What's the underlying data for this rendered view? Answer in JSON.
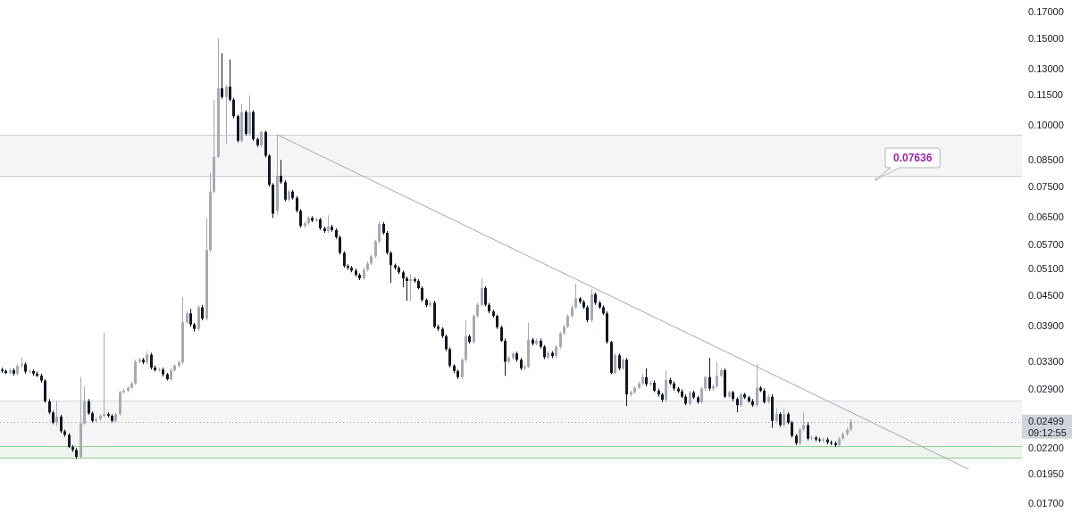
{
  "chart_data": {
    "type": "candlestick",
    "log": true,
    "tick_labels": "y",
    "categories": [
      null,
      null,
      null,
      null,
      null,
      null,
      null,
      null,
      null,
      null,
      null,
      null,
      null,
      null,
      null,
      null,
      null,
      null,
      null,
      null,
      null,
      null,
      null,
      null,
      null,
      null,
      null,
      null,
      null,
      null,
      null,
      null,
      null,
      null,
      null,
      null,
      null,
      null,
      null,
      null,
      null,
      null,
      null,
      null,
      null,
      null,
      null,
      null,
      null,
      null,
      null,
      null,
      null,
      null,
      null,
      null,
      null,
      null,
      null,
      null,
      null,
      null,
      null,
      null,
      null,
      null,
      null,
      null,
      null,
      null,
      null,
      null,
      null,
      null,
      null,
      null,
      null,
      null,
      null,
      null,
      null,
      null,
      null,
      null,
      null,
      null,
      null,
      null,
      null,
      null,
      null,
      null,
      null,
      null,
      null,
      null,
      null,
      null,
      null,
      null,
      null,
      null,
      null,
      null,
      null,
      null,
      null,
      null,
      null,
      null,
      null,
      null,
      null,
      null,
      null,
      null,
      null,
      null,
      null,
      null,
      null,
      null,
      null,
      null,
      null,
      null,
      null,
      null,
      null,
      null,
      null,
      null,
      null,
      null,
      null,
      null,
      null,
      null,
      null,
      null,
      null,
      null,
      null,
      null,
      null,
      null,
      null,
      null,
      null,
      null,
      null,
      null,
      null,
      null,
      null,
      null,
      null,
      null,
      null,
      null,
      null,
      null,
      null,
      null,
      null,
      null,
      null,
      null,
      null,
      null,
      null,
      null,
      null,
      null,
      null,
      null,
      null,
      null,
      null,
      null,
      null,
      null,
      null,
      null,
      null,
      null,
      null,
      null,
      null,
      null,
      null,
      null,
      null,
      null,
      null,
      null,
      null,
      null,
      null,
      null,
      null,
      null,
      null,
      null,
      null,
      null,
      null,
      null,
      null,
      null,
      null,
      null,
      null,
      null,
      null,
      null,
      null,
      null,
      null,
      null,
      null,
      null,
      null,
      null,
      null,
      null,
      null,
      null,
      null,
      null,
      null,
      null,
      null,
      null,
      null,
      null,
      null,
      null,
      null,
      null,
      null,
      null,
      null,
      null,
      null,
      null,
      null,
      null,
      null,
      null,
      null,
      null,
      null,
      null,
      null,
      null,
      null,
      null,
      null,
      null
    ],
    "series": [
      {
        "type": "candlestick",
        "ohlc": [
          [
            0.0319,
            0.0322,
            0.0314,
            0.0317
          ],
          [
            0.0317,
            0.0319,
            0.0312,
            0.0314
          ],
          [
            0.0314,
            0.0321,
            0.0312,
            0.0318
          ],
          [
            0.0318,
            0.0321,
            0.031,
            0.0313
          ],
          [
            0.0313,
            0.0327,
            0.031,
            0.0325
          ],
          [
            0.0325,
            0.0338,
            0.0322,
            0.0327
          ],
          [
            0.0327,
            0.033,
            0.0313,
            0.0316
          ],
          [
            0.0316,
            0.0319,
            0.0313,
            0.0317
          ],
          [
            0.0317,
            0.0319,
            0.031,
            0.0313
          ],
          [
            0.0313,
            0.0316,
            0.0308,
            0.031
          ],
          [
            0.031,
            0.0313,
            0.03,
            0.0303
          ],
          [
            0.0303,
            0.0305,
            0.0273,
            0.0275
          ],
          [
            0.0275,
            0.0278,
            0.0259,
            0.0261
          ],
          [
            0.0261,
            0.0263,
            0.0247,
            0.0249
          ],
          [
            0.0249,
            0.0275,
            0.0245,
            0.0256
          ],
          [
            0.0256,
            0.0258,
            0.0237,
            0.0239
          ],
          [
            0.0239,
            0.0241,
            0.0233,
            0.0235
          ],
          [
            0.0235,
            0.0237,
            0.0221,
            0.0222
          ],
          [
            0.0222,
            0.0224,
            0.0217,
            0.0219
          ],
          [
            0.0219,
            0.0221,
            0.021,
            0.0212
          ],
          [
            0.0212,
            0.0308,
            0.021,
            0.0248
          ],
          [
            0.0248,
            0.0295,
            0.0246,
            0.0275
          ],
          [
            0.0275,
            0.0278,
            0.0258,
            0.026
          ],
          [
            0.026,
            0.0262,
            0.0249,
            0.0251
          ],
          [
            0.0251,
            0.0255,
            0.0249,
            0.0253
          ],
          [
            0.0253,
            0.0259,
            0.0251,
            0.0257
          ],
          [
            0.0257,
            0.0379,
            0.0255,
            0.0259
          ],
          [
            0.0259,
            0.0261,
            0.0255,
            0.0257
          ],
          [
            0.0257,
            0.0259,
            0.0249,
            0.0251
          ],
          [
            0.0251,
            0.0261,
            0.0249,
            0.0259
          ],
          [
            0.0259,
            0.0289,
            0.0257,
            0.0287
          ],
          [
            0.0287,
            0.0292,
            0.0285,
            0.0289
          ],
          [
            0.0289,
            0.0295,
            0.0287,
            0.0293
          ],
          [
            0.0293,
            0.0302,
            0.0291,
            0.0299
          ],
          [
            0.0299,
            0.0334,
            0.0297,
            0.0331
          ],
          [
            0.0331,
            0.0337,
            0.0329,
            0.0334
          ],
          [
            0.0334,
            0.0337,
            0.0327,
            0.033
          ],
          [
            0.033,
            0.0348,
            0.0327,
            0.0342
          ],
          [
            0.0342,
            0.0345,
            0.0319,
            0.0322
          ],
          [
            0.0322,
            0.0325,
            0.0316,
            0.0318
          ],
          [
            0.0318,
            0.0322,
            0.0316,
            0.0319
          ],
          [
            0.0319,
            0.0322,
            0.0309,
            0.0312
          ],
          [
            0.0312,
            0.0314,
            0.0303,
            0.0305
          ],
          [
            0.0305,
            0.0321,
            0.0303,
            0.0318
          ],
          [
            0.0318,
            0.0327,
            0.0316,
            0.0325
          ],
          [
            0.0325,
            0.0333,
            0.0322,
            0.033
          ],
          [
            0.033,
            0.0448,
            0.0327,
            0.0398
          ],
          [
            0.0398,
            0.0419,
            0.0395,
            0.0415
          ],
          [
            0.0415,
            0.0424,
            0.039,
            0.0394
          ],
          [
            0.0394,
            0.0397,
            0.0381,
            0.0386
          ],
          [
            0.0386,
            0.0431,
            0.0382,
            0.0427
          ],
          [
            0.0427,
            0.0432,
            0.0402,
            0.0405
          ],
          [
            0.0405,
            0.0649,
            0.0402,
            0.0558
          ],
          [
            0.0558,
            0.08,
            0.0553,
            0.0734
          ],
          [
            0.0734,
            0.1128,
            0.0728,
            0.0864
          ],
          [
            0.0864,
            0.1503,
            0.0858,
            0.119
          ],
          [
            0.119,
            0.1402,
            0.1133,
            0.1142
          ],
          [
            0.1142,
            0.121,
            0.0919,
            0.1199
          ],
          [
            0.1199,
            0.1362,
            0.1119,
            0.1128
          ],
          [
            0.1128,
            0.1138,
            0.1035,
            0.1044
          ],
          [
            0.1044,
            0.1052,
            0.0923,
            0.0931
          ],
          [
            0.0931,
            0.1105,
            0.0923,
            0.1065
          ],
          [
            0.1065,
            0.1074,
            0.0954,
            0.0962
          ],
          [
            0.0962,
            0.1151,
            0.0954,
            0.1065
          ],
          [
            0.1065,
            0.1074,
            0.0931,
            0.0938
          ],
          [
            0.0938,
            0.0946,
            0.0904,
            0.0912
          ],
          [
            0.0912,
            0.0977,
            0.0904,
            0.097
          ],
          [
            0.097,
            0.0977,
            0.0861,
            0.0868
          ],
          [
            0.0868,
            0.0875,
            0.0752,
            0.0758
          ],
          [
            0.0758,
            0.0764,
            0.0649,
            0.0662
          ],
          [
            0.0671,
            0.0958,
            0.0657,
            0.079
          ],
          [
            0.079,
            0.0851,
            0.0761,
            0.0767
          ],
          [
            0.0767,
            0.0774,
            0.0701,
            0.0707
          ],
          [
            0.0707,
            0.074,
            0.0701,
            0.0734
          ],
          [
            0.0734,
            0.074,
            0.0707,
            0.0713
          ],
          [
            0.0713,
            0.0719,
            0.0665,
            0.0671
          ],
          [
            0.0671,
            0.0676,
            0.062,
            0.0625
          ],
          [
            0.0625,
            0.0638,
            0.062,
            0.0633
          ],
          [
            0.0633,
            0.0654,
            0.0628,
            0.0649
          ],
          [
            0.0649,
            0.0654,
            0.0636,
            0.0641
          ],
          [
            0.0641,
            0.0649,
            0.0636,
            0.0644
          ],
          [
            0.0644,
            0.0649,
            0.0613,
            0.0618
          ],
          [
            0.0618,
            0.0623,
            0.0605,
            0.061
          ],
          [
            0.061,
            0.0657,
            0.0605,
            0.0623
          ],
          [
            0.0623,
            0.0628,
            0.0608,
            0.0613
          ],
          [
            0.0613,
            0.0618,
            0.0588,
            0.0593
          ],
          [
            0.0593,
            0.0598,
            0.0546,
            0.0551
          ],
          [
            0.0551,
            0.0555,
            0.0514,
            0.0518
          ],
          [
            0.0518,
            0.0522,
            0.0509,
            0.0514
          ],
          [
            0.0514,
            0.0518,
            0.0503,
            0.0507
          ],
          [
            0.0507,
            0.0512,
            0.0493,
            0.0497
          ],
          [
            0.0497,
            0.0501,
            0.0485,
            0.0489
          ],
          [
            0.0489,
            0.0514,
            0.0485,
            0.0509
          ],
          [
            0.0509,
            0.0529,
            0.0505,
            0.0524
          ],
          [
            0.0524,
            0.0546,
            0.052,
            0.0542
          ],
          [
            0.0542,
            0.0586,
            0.0537,
            0.0581
          ],
          [
            0.0581,
            0.0638,
            0.0576,
            0.0631
          ],
          [
            0.0631,
            0.0636,
            0.06,
            0.0605
          ],
          [
            0.0605,
            0.061,
            0.0546,
            0.0551
          ],
          [
            0.0551,
            0.0555,
            0.0479,
            0.052
          ],
          [
            0.052,
            0.0524,
            0.0509,
            0.0514
          ],
          [
            0.0514,
            0.0518,
            0.0499,
            0.0503
          ],
          [
            0.0503,
            0.0507,
            0.0469,
            0.0489
          ],
          [
            0.0489,
            0.0493,
            0.044,
            0.0483
          ],
          [
            0.0483,
            0.0499,
            0.044,
            0.0487
          ],
          [
            0.0487,
            0.0491,
            0.0479,
            0.0483
          ],
          [
            0.0483,
            0.0487,
            0.0464,
            0.0467
          ],
          [
            0.0467,
            0.0471,
            0.0438,
            0.0442
          ],
          [
            0.0442,
            0.0445,
            0.0427,
            0.0431
          ],
          [
            0.0431,
            0.044,
            0.0427,
            0.0436
          ],
          [
            0.0436,
            0.044,
            0.0387,
            0.039
          ],
          [
            0.039,
            0.0394,
            0.0382,
            0.0386
          ],
          [
            0.0386,
            0.0389,
            0.037,
            0.0373
          ],
          [
            0.0373,
            0.0376,
            0.0348,
            0.0351
          ],
          [
            0.0351,
            0.0354,
            0.0322,
            0.0325
          ],
          [
            0.0325,
            0.0327,
            0.0314,
            0.0317
          ],
          [
            0.0317,
            0.0319,
            0.0305,
            0.0308
          ],
          [
            0.0308,
            0.0337,
            0.0305,
            0.0334
          ],
          [
            0.0334,
            0.0402,
            0.0331,
            0.0373
          ],
          [
            0.0373,
            0.0376,
            0.036,
            0.0363
          ],
          [
            0.0363,
            0.0413,
            0.036,
            0.041
          ],
          [
            0.041,
            0.0436,
            0.0407,
            0.0432
          ],
          [
            0.0432,
            0.0489,
            0.0429,
            0.0467
          ],
          [
            0.0467,
            0.0471,
            0.0429,
            0.0432
          ],
          [
            0.0432,
            0.0436,
            0.0415,
            0.0419
          ],
          [
            0.0419,
            0.0422,
            0.0407,
            0.041
          ],
          [
            0.041,
            0.0413,
            0.0386,
            0.0389
          ],
          [
            0.0389,
            0.0392,
            0.0363,
            0.0365
          ],
          [
            0.0365,
            0.0369,
            0.031,
            0.0331
          ],
          [
            0.0331,
            0.034,
            0.0329,
            0.0337
          ],
          [
            0.0337,
            0.0347,
            0.0334,
            0.0344
          ],
          [
            0.0344,
            0.0347,
            0.0331,
            0.0334
          ],
          [
            0.0334,
            0.0337,
            0.0318,
            0.0321
          ],
          [
            0.0321,
            0.0326,
            0.0318,
            0.0323
          ],
          [
            0.0323,
            0.0397,
            0.0321,
            0.0367
          ],
          [
            0.0367,
            0.037,
            0.0357,
            0.036
          ],
          [
            0.036,
            0.0369,
            0.0357,
            0.0365
          ],
          [
            0.0365,
            0.0369,
            0.0352,
            0.0355
          ],
          [
            0.0355,
            0.0358,
            0.0335,
            0.0338
          ],
          [
            0.0338,
            0.0348,
            0.0335,
            0.0345
          ],
          [
            0.0345,
            0.0348,
            0.0337,
            0.034
          ],
          [
            0.034,
            0.0358,
            0.0337,
            0.0355
          ],
          [
            0.0355,
            0.0381,
            0.0352,
            0.0378
          ],
          [
            0.0378,
            0.0394,
            0.0375,
            0.039
          ],
          [
            0.039,
            0.0413,
            0.0387,
            0.041
          ],
          [
            0.041,
            0.0431,
            0.0407,
            0.0427
          ],
          [
            0.0427,
            0.0477,
            0.0424,
            0.0445
          ],
          [
            0.0445,
            0.0448,
            0.0434,
            0.0438
          ],
          [
            0.0438,
            0.0442,
            0.0424,
            0.0427
          ],
          [
            0.0427,
            0.0431,
            0.0398,
            0.0402
          ],
          [
            0.0402,
            0.0465,
            0.0398,
            0.0454
          ],
          [
            0.0454,
            0.0458,
            0.0432,
            0.0436
          ],
          [
            0.0436,
            0.044,
            0.0424,
            0.0427
          ],
          [
            0.0427,
            0.0431,
            0.0412,
            0.0415
          ],
          [
            0.0415,
            0.0419,
            0.036,
            0.0363
          ],
          [
            0.0363,
            0.0365,
            0.0312,
            0.0314
          ],
          [
            0.0314,
            0.0344,
            0.0312,
            0.0341
          ],
          [
            0.0341,
            0.0344,
            0.0318,
            0.0321
          ],
          [
            0.0321,
            0.0337,
            0.0318,
            0.0334
          ],
          [
            0.0334,
            0.0337,
            0.0269,
            0.0284
          ],
          [
            0.0284,
            0.0289,
            0.0281,
            0.0287
          ],
          [
            0.0287,
            0.0295,
            0.0285,
            0.0293
          ],
          [
            0.0293,
            0.0302,
            0.0291,
            0.0299
          ],
          [
            0.0299,
            0.0313,
            0.0297,
            0.0308
          ],
          [
            0.0308,
            0.0321,
            0.0295,
            0.0298
          ],
          [
            0.0298,
            0.0303,
            0.0295,
            0.03
          ],
          [
            0.03,
            0.0303,
            0.0287,
            0.0289
          ],
          [
            0.0289,
            0.0292,
            0.0281,
            0.0284
          ],
          [
            0.0284,
            0.0286,
            0.0274,
            0.0277
          ],
          [
            0.0277,
            0.0318,
            0.0274,
            0.0304
          ],
          [
            0.0304,
            0.0307,
            0.0297,
            0.0299
          ],
          [
            0.0299,
            0.0302,
            0.0289,
            0.0292
          ],
          [
            0.0292,
            0.0294,
            0.0286,
            0.0288
          ],
          [
            0.0288,
            0.0291,
            0.0279,
            0.0281
          ],
          [
            0.0281,
            0.0284,
            0.027,
            0.0272
          ],
          [
            0.0272,
            0.0289,
            0.027,
            0.0287
          ],
          [
            0.0287,
            0.0289,
            0.0278,
            0.028
          ],
          [
            0.028,
            0.0282,
            0.0272,
            0.0274
          ],
          [
            0.0274,
            0.0294,
            0.0272,
            0.0292
          ],
          [
            0.0292,
            0.031,
            0.0289,
            0.0308
          ],
          [
            0.0308,
            0.0337,
            0.0289,
            0.0292
          ],
          [
            0.0292,
            0.0298,
            0.0289,
            0.0295
          ],
          [
            0.0295,
            0.0331,
            0.0293,
            0.031
          ],
          [
            0.031,
            0.0321,
            0.0308,
            0.0318
          ],
          [
            0.0318,
            0.0321,
            0.0279,
            0.0281
          ],
          [
            0.0281,
            0.0289,
            0.0279,
            0.0287
          ],
          [
            0.0287,
            0.0289,
            0.0275,
            0.0278
          ],
          [
            0.0278,
            0.028,
            0.0261,
            0.027
          ],
          [
            0.027,
            0.0286,
            0.0268,
            0.0284
          ],
          [
            0.0284,
            0.0286,
            0.0278,
            0.028
          ],
          [
            0.028,
            0.0282,
            0.0273,
            0.0275
          ],
          [
            0.0275,
            0.0278,
            0.0268,
            0.027
          ],
          [
            0.027,
            0.0327,
            0.0268,
            0.0293
          ],
          [
            0.0293,
            0.0295,
            0.0287,
            0.0289
          ],
          [
            0.0289,
            0.0292,
            0.0272,
            0.0274
          ],
          [
            0.0274,
            0.0284,
            0.0272,
            0.0281
          ],
          [
            0.0281,
            0.0284,
            0.0243,
            0.0251
          ],
          [
            0.0251,
            0.0266,
            0.0249,
            0.0259
          ],
          [
            0.0259,
            0.0261,
            0.0244,
            0.0246
          ],
          [
            0.0246,
            0.0266,
            0.0244,
            0.0259
          ],
          [
            0.0259,
            0.0261,
            0.0247,
            0.0249
          ],
          [
            0.0249,
            0.0251,
            0.0232,
            0.0234
          ],
          [
            0.0234,
            0.0236,
            0.0224,
            0.0226
          ],
          [
            0.0226,
            0.0243,
            0.0224,
            0.0241
          ],
          [
            0.0241,
            0.0261,
            0.0239,
            0.0246
          ],
          [
            0.0246,
            0.0249,
            0.0229,
            0.0231
          ],
          [
            0.0231,
            0.0234,
            0.0229,
            0.0232
          ],
          [
            0.0232,
            0.0234,
            0.0228,
            0.023
          ],
          [
            0.023,
            0.0232,
            0.0227,
            0.0229
          ],
          [
            0.0229,
            0.0232,
            0.0227,
            0.023
          ],
          [
            0.023,
            0.0232,
            0.0225,
            0.0227
          ],
          [
            0.0227,
            0.0229,
            0.0224,
            0.0226
          ],
          [
            0.0226,
            0.0228,
            0.0222,
            0.0224
          ],
          [
            0.0224,
            0.0233,
            0.0222,
            0.0231
          ],
          [
            0.0231,
            0.0238,
            0.0229,
            0.0236
          ],
          [
            0.0236,
            0.0243,
            0.0234,
            0.0241
          ],
          [
            0.0241,
            0.0253,
            0.0239,
            0.02499
          ],
          null,
          null,
          null,
          null,
          null,
          null,
          null,
          null,
          null,
          null,
          null,
          null,
          null,
          null,
          null,
          null,
          null,
          null,
          null,
          null,
          null,
          null,
          null,
          null,
          null,
          null,
          null,
          null,
          null,
          null,
          null,
          null,
          null,
          null,
          null,
          null,
          null,
          null,
          null,
          null,
          null,
          null,
          null
        ],
        "colors": [
          "#131722",
          "#131722",
          "#a7aab3",
          "#131722",
          "#a7aab3",
          "#a7aab3",
          "#131722",
          "#a7aab3",
          "#131722",
          "#131722",
          "#131722",
          "#131722",
          "#131722",
          "#131722",
          "#a7aab3",
          "#131722",
          "#131722",
          "#131722",
          "#131722",
          "#131722",
          "#a7aab3",
          "#a7aab3",
          "#131722",
          "#131722",
          "#a7aab3",
          "#a7aab3",
          "#a7aab3",
          "#131722",
          "#131722",
          "#a7aab3",
          "#a7aab3",
          "#a7aab3",
          "#a7aab3",
          "#a7aab3",
          "#a7aab3",
          "#a7aab3",
          "#131722",
          "#a7aab3",
          "#131722",
          "#131722",
          "#a7aab3",
          "#131722",
          "#131722",
          "#a7aab3",
          "#a7aab3",
          "#a7aab3",
          "#a7aab3",
          "#a7aab3",
          "#131722",
          "#131722",
          "#a7aab3",
          "#131722",
          "#a7aab3",
          "#a7aab3",
          "#a7aab3",
          "#a7aab3",
          "#131722",
          "#a7aab3",
          "#131722",
          "#131722",
          "#131722",
          "#a7aab3",
          "#131722",
          "#a7aab3",
          "#131722",
          "#131722",
          "#a7aab3",
          "#131722",
          "#131722",
          "#131722",
          "#a7aab3",
          "#131722",
          "#131722",
          "#a7aab3",
          "#131722",
          "#131722",
          "#131722",
          "#a7aab3",
          "#a7aab3",
          "#131722",
          "#a7aab3",
          "#131722",
          "#131722",
          "#a7aab3",
          "#131722",
          "#131722",
          "#131722",
          "#131722",
          "#131722",
          "#131722",
          "#131722",
          "#131722",
          "#a7aab3",
          "#a7aab3",
          "#a7aab3",
          "#a7aab3",
          "#a7aab3",
          "#131722",
          "#131722",
          "#131722",
          "#131722",
          "#131722",
          "#131722",
          "#131722",
          "#a7aab3",
          "#131722",
          "#131722",
          "#131722",
          "#131722",
          "#a7aab3",
          "#131722",
          "#131722",
          "#131722",
          "#131722",
          "#131722",
          "#131722",
          "#131722",
          "#a7aab3",
          "#a7aab3",
          "#131722",
          "#a7aab3",
          "#a7aab3",
          "#a7aab3",
          "#131722",
          "#131722",
          "#131722",
          "#131722",
          "#131722",
          "#131722",
          "#a7aab3",
          "#a7aab3",
          "#131722",
          "#131722",
          "#a7aab3",
          "#a7aab3",
          "#131722",
          "#a7aab3",
          "#131722",
          "#131722",
          "#a7aab3",
          "#131722",
          "#a7aab3",
          "#a7aab3",
          "#a7aab3",
          "#a7aab3",
          "#a7aab3",
          "#a7aab3",
          "#131722",
          "#131722",
          "#131722",
          "#a7aab3",
          "#131722",
          "#131722",
          "#131722",
          "#131722",
          "#131722",
          "#a7aab3",
          "#131722",
          "#a7aab3",
          "#131722",
          "#a7aab3",
          "#a7aab3",
          "#a7aab3",
          "#a7aab3",
          "#131722",
          "#a7aab3",
          "#131722",
          "#131722",
          "#131722",
          "#a7aab3",
          "#131722",
          "#131722",
          "#131722",
          "#131722",
          "#131722",
          "#a7aab3",
          "#131722",
          "#131722",
          "#a7aab3",
          "#a7aab3",
          "#131722",
          "#a7aab3",
          "#a7aab3",
          "#a7aab3",
          "#131722",
          "#a7aab3",
          "#131722",
          "#131722",
          "#a7aab3",
          "#131722",
          "#131722",
          "#131722",
          "#a7aab3",
          "#131722",
          "#131722",
          "#a7aab3",
          "#131722",
          "#a7aab3",
          "#131722",
          "#a7aab3",
          "#131722",
          "#131722",
          "#131722",
          "#a7aab3",
          "#a7aab3",
          "#131722",
          "#a7aab3",
          "#131722",
          "#131722",
          "#a7aab3",
          "#131722",
          "#131722",
          "#131722",
          "#a7aab3",
          "#a7aab3",
          "#a7aab3",
          "#a7aab3",
          null,
          null,
          null,
          null,
          null,
          null,
          null,
          null,
          null,
          null,
          null,
          null,
          null,
          null,
          null,
          null,
          null,
          null,
          null,
          null,
          null,
          null,
          null,
          null,
          null,
          null,
          null,
          null,
          null,
          null,
          null,
          null,
          null,
          null,
          null,
          null,
          null,
          null,
          null,
          null,
          null,
          null,
          null
        ]
      },
      {
        "type": "line",
        "color": "#a5a8b0",
        "values": [
          null,
          null,
          null,
          null,
          null,
          null,
          null,
          null,
          null,
          null,
          null,
          null,
          null,
          null,
          null,
          null,
          null,
          null,
          null,
          null,
          null,
          null,
          null,
          null,
          null,
          null,
          null,
          null,
          null,
          null,
          null,
          null,
          null,
          null,
          null,
          null,
          null,
          null,
          null,
          null,
          null,
          null,
          null,
          null,
          null,
          null,
          null,
          null,
          null,
          null,
          null,
          null,
          null,
          null,
          null,
          null,
          null,
          null,
          null,
          null,
          null,
          null,
          null,
          null,
          null,
          null,
          null,
          null,
          null,
          null,
          0.0958,
          null,
          null,
          null,
          null,
          null,
          null,
          null,
          null,
          null,
          null,
          null,
          null,
          null,
          null,
          null,
          null,
          null,
          null,
          null,
          null,
          null,
          null,
          null,
          null,
          null,
          null,
          null,
          null,
          null,
          null,
          null,
          null,
          null,
          null,
          null,
          null,
          null,
          null,
          null,
          null,
          null,
          null,
          null,
          null,
          null,
          null,
          null,
          null,
          null,
          null,
          null,
          null,
          null,
          null,
          null,
          null,
          null,
          null,
          null,
          null,
          null,
          null,
          null,
          null,
          null,
          null,
          null,
          null,
          null,
          null,
          null,
          null,
          null,
          null,
          null,
          null,
          null,
          null,
          null,
          null,
          null,
          null,
          null,
          null,
          null,
          null,
          null,
          null,
          null,
          null,
          null,
          null,
          null,
          null,
          null,
          null,
          null,
          null,
          null,
          null,
          null,
          null,
          null,
          null,
          null,
          null,
          null,
          null,
          null,
          null,
          null,
          null,
          null,
          null,
          null,
          null,
          null,
          null,
          null,
          null,
          null,
          null,
          null,
          null,
          null,
          null,
          null,
          null,
          null,
          null,
          null,
          null,
          null,
          null,
          null,
          null,
          null,
          null,
          null,
          null,
          null,
          null,
          null,
          null,
          null,
          null,
          null,
          null,
          null,
          null,
          null,
          null,
          null,
          null,
          null,
          null,
          null,
          null,
          null,
          null,
          null,
          null,
          null,
          null,
          null,
          null,
          null,
          null,
          null,
          null,
          null,
          null,
          null,
          null,
          null,
          0.02,
          null,
          null,
          null,
          null,
          null,
          null,
          null,
          null,
          null,
          null,
          null,
          null,
          null
        ]
      }
    ],
    "ylim": [
      0.017,
      0.17
    ],
    "yticks": [
      {
        "value": 0.017,
        "label": "0.01700"
      },
      {
        "value": 0.0195,
        "label": "0.01950"
      },
      {
        "value": 0.022,
        "label": "0.02200"
      },
      {
        "value": 0.029,
        "label": "0.02900"
      },
      {
        "value": 0.033,
        "label": "0.03300"
      },
      {
        "value": 0.039,
        "label": "0.03900"
      },
      {
        "value": 0.045,
        "label": "0.04500"
      },
      {
        "value": 0.051,
        "label": "0.05100"
      },
      {
        "value": 0.057,
        "label": "0.05700"
      },
      {
        "value": 0.065,
        "label": "0.06500"
      },
      {
        "value": 0.075,
        "label": "0.07500"
      },
      {
        "value": 0.085,
        "label": "0.08500"
      },
      {
        "value": 0.1,
        "label": "0.10000"
      },
      {
        "value": 0.115,
        "label": "0.11500"
      },
      {
        "value": 0.13,
        "label": "0.13000"
      },
      {
        "value": 0.15,
        "label": "0.15000"
      },
      {
        "value": 0.17,
        "label": "0.17000"
      }
    ],
    "bands": [
      {
        "axis": "y",
        "from": 0.0792,
        "to": 0.0958,
        "color": "#f5f5f6"
      },
      {
        "axis": "y",
        "from": 0.0223,
        "to": 0.0276,
        "color": "#f5f5f6"
      },
      {
        "axis": "y",
        "from": 0.0211,
        "to": 0.0223,
        "color": "#edf5ee"
      }
    ],
    "ref_lines": [
      {
        "axis": "y",
        "value": 0.0958,
        "color": "#c9cbd1"
      },
      {
        "axis": "y",
        "value": 0.0792,
        "color": "#c9cbd1"
      },
      {
        "axis": "y",
        "value": 0.0276,
        "color": "#d6d8dd"
      },
      {
        "axis": "y",
        "value": 0.0223,
        "color": "#8fd18f"
      },
      {
        "axis": "y",
        "value": 0.0211,
        "color": "#8fd18f"
      },
      {
        "axis": "y",
        "value": 0.02499,
        "label": "0.02499",
        "line_style": "dotted",
        "color": "#9598a1"
      }
    ],
    "annotations": [
      "09:12:55",
      "0.07636"
    ]
  }
}
